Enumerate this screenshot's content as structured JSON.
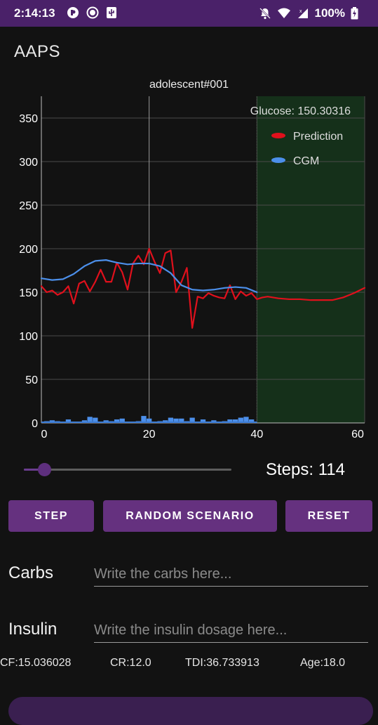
{
  "status_bar": {
    "time": "2:14:13",
    "battery": "100%"
  },
  "app": {
    "title": "AAPS"
  },
  "chart_data": {
    "type": "line",
    "title": "adolescent#001",
    "annotation": "Glucose: 150.30316",
    "xlim": [
      0,
      60
    ],
    "ylim": [
      0,
      375
    ],
    "x_ticks": [
      0,
      20,
      40,
      60
    ],
    "y_ticks": [
      0,
      50,
      100,
      150,
      200,
      250,
      300,
      350
    ],
    "grid": true,
    "legend_position": "top-right",
    "shaded_region": {
      "x_start": 40,
      "x_end": 60,
      "color": "#15301a"
    },
    "series": [
      {
        "name": "Prediction",
        "color": "#e0101c",
        "x": [
          0,
          1,
          2,
          3,
          4,
          5,
          6,
          7,
          8,
          9,
          10,
          11,
          12,
          13,
          14,
          15,
          16,
          17,
          18,
          19,
          20,
          21,
          22,
          23,
          24,
          25,
          26,
          27,
          28,
          29,
          30,
          31,
          32,
          33,
          34,
          35,
          36,
          37,
          38,
          39,
          40,
          41,
          42,
          44,
          46,
          48,
          50,
          52,
          54,
          56,
          58,
          60
        ],
        "y": [
          157,
          150,
          152,
          147,
          150,
          157,
          137,
          160,
          163,
          151,
          162,
          176,
          162,
          162,
          184,
          173,
          153,
          183,
          192,
          182,
          200,
          185,
          172,
          195,
          198,
          150,
          162,
          178,
          109,
          145,
          143,
          149,
          146,
          144,
          143,
          158,
          142,
          151,
          146,
          149,
          142,
          144,
          145,
          143,
          142,
          142,
          141,
          141,
          141,
          144,
          149,
          155
        ]
      },
      {
        "name": "CGM",
        "color": "#4c8fea",
        "x": [
          0,
          2,
          4,
          6,
          8,
          10,
          12,
          14,
          16,
          18,
          20,
          22,
          24,
          26,
          28,
          30,
          32,
          34,
          36,
          38,
          40
        ],
        "y": [
          166,
          164,
          165,
          171,
          180,
          186,
          187,
          184,
          182,
          183,
          183,
          180,
          172,
          158,
          153,
          152,
          153,
          155,
          156,
          155,
          150
        ]
      }
    ],
    "bars": {
      "color": "#4c8fea",
      "x": [
        1,
        2,
        3,
        5,
        8,
        9,
        10,
        12,
        13,
        14,
        15,
        17,
        18,
        19,
        20,
        22,
        23,
        24,
        25,
        26,
        27,
        28,
        30,
        31,
        32,
        34,
        35,
        36,
        37,
        38,
        39
      ],
      "y": [
        2,
        3,
        2,
        4,
        3,
        7,
        6,
        3,
        2,
        4,
        5,
        1,
        2,
        8,
        5,
        2,
        3,
        6,
        5,
        5,
        2,
        6,
        4,
        1,
        3,
        2,
        4,
        4,
        6,
        7,
        4
      ]
    }
  },
  "slider": {
    "value_fraction": 0.1
  },
  "steps": {
    "label": "Steps: 114"
  },
  "buttons": {
    "step": "STEP",
    "random": "RANDOM SCENARIO",
    "reset": "RESET"
  },
  "carbs": {
    "label": "Carbs",
    "placeholder": "Write the carbs here..."
  },
  "insulin": {
    "label": "Insulin",
    "placeholder": "Write the insulin dosage here..."
  },
  "stats": {
    "cf": "CF:15.036028",
    "cr": "CR:12.0",
    "tdi": "TDI:36.733913",
    "age": "Age:18.0"
  }
}
